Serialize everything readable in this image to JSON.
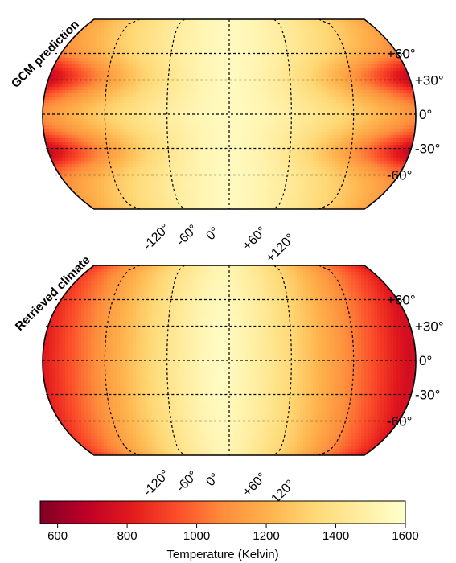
{
  "chart_data": [
    {
      "type": "heatmap",
      "title": "GCM prediction",
      "projection": "robinson",
      "field": "dayside_hot_nightside_cool_with_cold_midlatitude_lobes",
      "lat_ticks": [
        "+60°",
        "+30°",
        "0°",
        "-30°",
        "-60°"
      ],
      "lon_ticks": [
        "-120°",
        "-60°",
        "0°",
        "+60°",
        "+120°"
      ],
      "temperature_range": [
        620,
        1600
      ]
    },
    {
      "type": "heatmap",
      "title": "Retrieved climate",
      "projection": "robinson",
      "field": "smooth_dayside_hot_nightside_cool",
      "lat_ticks": [
        "+60°",
        "+30°",
        "0°",
        "-30°",
        "-60°"
      ],
      "lon_ticks": [
        "-120°",
        "-60°",
        "0°",
        "+60°",
        "+120°"
      ],
      "temperature_range": [
        650,
        1600
      ]
    }
  ],
  "colorbar": {
    "label": "Temperature (Kelvin)",
    "min": 550,
    "max": 1600,
    "ticks": [
      "600",
      "800",
      "1000",
      "1200",
      "1400",
      "1600"
    ],
    "tick_values": [
      600,
      800,
      1000,
      1200,
      1400,
      1600
    ],
    "colormap": "YlOrRd_reversed",
    "colors": [
      "#800026",
      "#bd0026",
      "#e31a1c",
      "#fc4e2a",
      "#fd8d3c",
      "#feb24c",
      "#fed976",
      "#ffeda0",
      "#ffffcc"
    ]
  }
}
